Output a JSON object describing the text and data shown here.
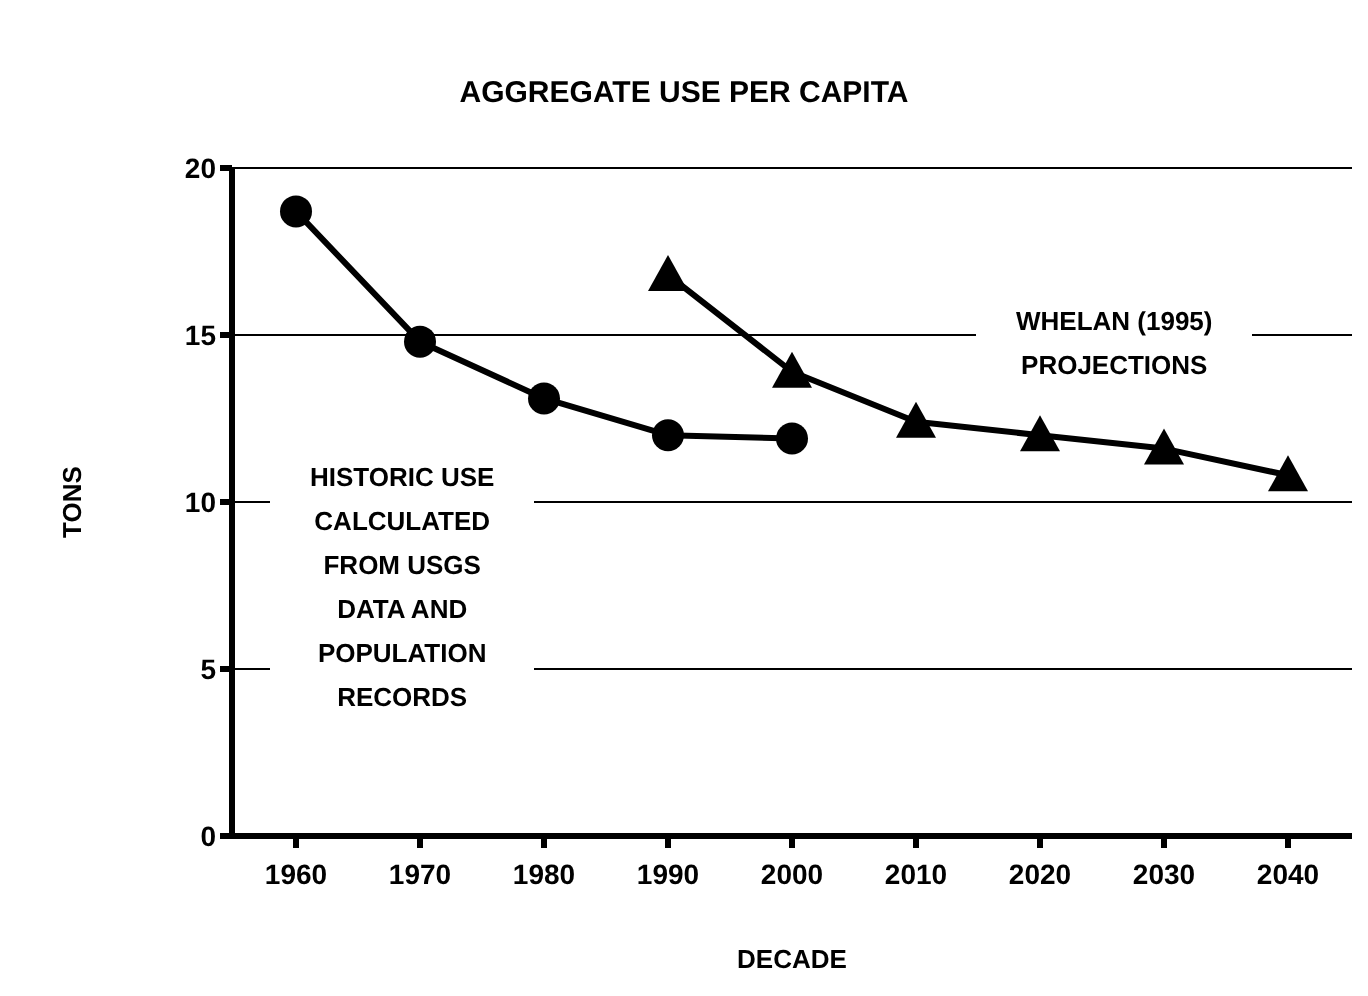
{
  "chart_data": {
    "type": "line",
    "title": "AGGREGATE USE PER CAPITA",
    "xlabel": "DECADE",
    "ylabel": "TONS",
    "categories": [
      "1960",
      "1970",
      "1980",
      "1990",
      "2000",
      "2010",
      "2020",
      "2030",
      "2040"
    ],
    "series": [
      {
        "name": "HISTORIC USE CALCULATED FROM USGS DATA AND POPULATION RECORDS",
        "color": "#000000",
        "marker": "circle",
        "values": [
          18.7,
          14.8,
          13.1,
          12.0,
          11.9,
          null,
          null,
          null,
          null
        ]
      },
      {
        "name": "WHELAN (1995) PROJECTIONS",
        "color": "#000000",
        "marker": "triangle",
        "values": [
          null,
          null,
          null,
          16.8,
          13.9,
          12.4,
          12.0,
          11.6,
          10.8
        ]
      }
    ],
    "ylim": [
      0,
      20
    ],
    "yticks": [
      0,
      5,
      10,
      15,
      20
    ],
    "grid": "y",
    "line_style": "solid"
  }
}
